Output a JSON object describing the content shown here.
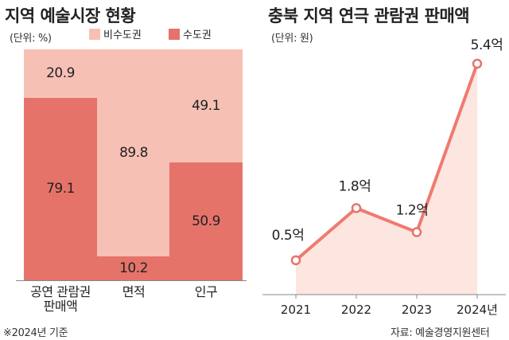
{
  "charts": {
    "left": {
      "title": "지역 예술시장 현황",
      "unit": "(단위: %)",
      "note": "※2024년 기준"
    },
    "right": {
      "title": "충북 지역 연극 관람권 판매액",
      "unit": "(단위: 원)",
      "source": "자료: 예술경영지원센터"
    }
  },
  "colors": {
    "metro": "#e5736a",
    "non_metro": "#f7c0b5",
    "line": "#ee7b70",
    "area": "#fde5e0",
    "marker": "#e5736a"
  },
  "chart_data": [
    {
      "type": "bar",
      "stacked": true,
      "categories": [
        "공연 관람권 판매액",
        "면적",
        "인구"
      ],
      "category_lines": [
        [
          "공연 관람권",
          "판매액"
        ],
        [
          "면적"
        ],
        [
          "인구"
        ]
      ],
      "series": [
        {
          "name": "수도권",
          "values": [
            79.1,
            10.2,
            50.9
          ]
        },
        {
          "name": "비수도권",
          "values": [
            20.9,
            89.8,
            49.1
          ]
        }
      ],
      "value_labels": {
        "수도권": [
          "79.1",
          "10.2",
          "50.9"
        ],
        "비수도권": [
          "20.9",
          "89.8",
          "49.1"
        ]
      },
      "ylim": [
        0,
        100
      ],
      "legend": "top"
    },
    {
      "type": "area",
      "x": [
        "2021",
        "2022",
        "2023",
        "2024년"
      ],
      "values": [
        0.5,
        1.8,
        1.2,
        5.4
      ],
      "value_labels": [
        "0.5억",
        "1.8억",
        "1.2억",
        "5.4억"
      ],
      "ylim": [
        0,
        5.4
      ]
    }
  ]
}
